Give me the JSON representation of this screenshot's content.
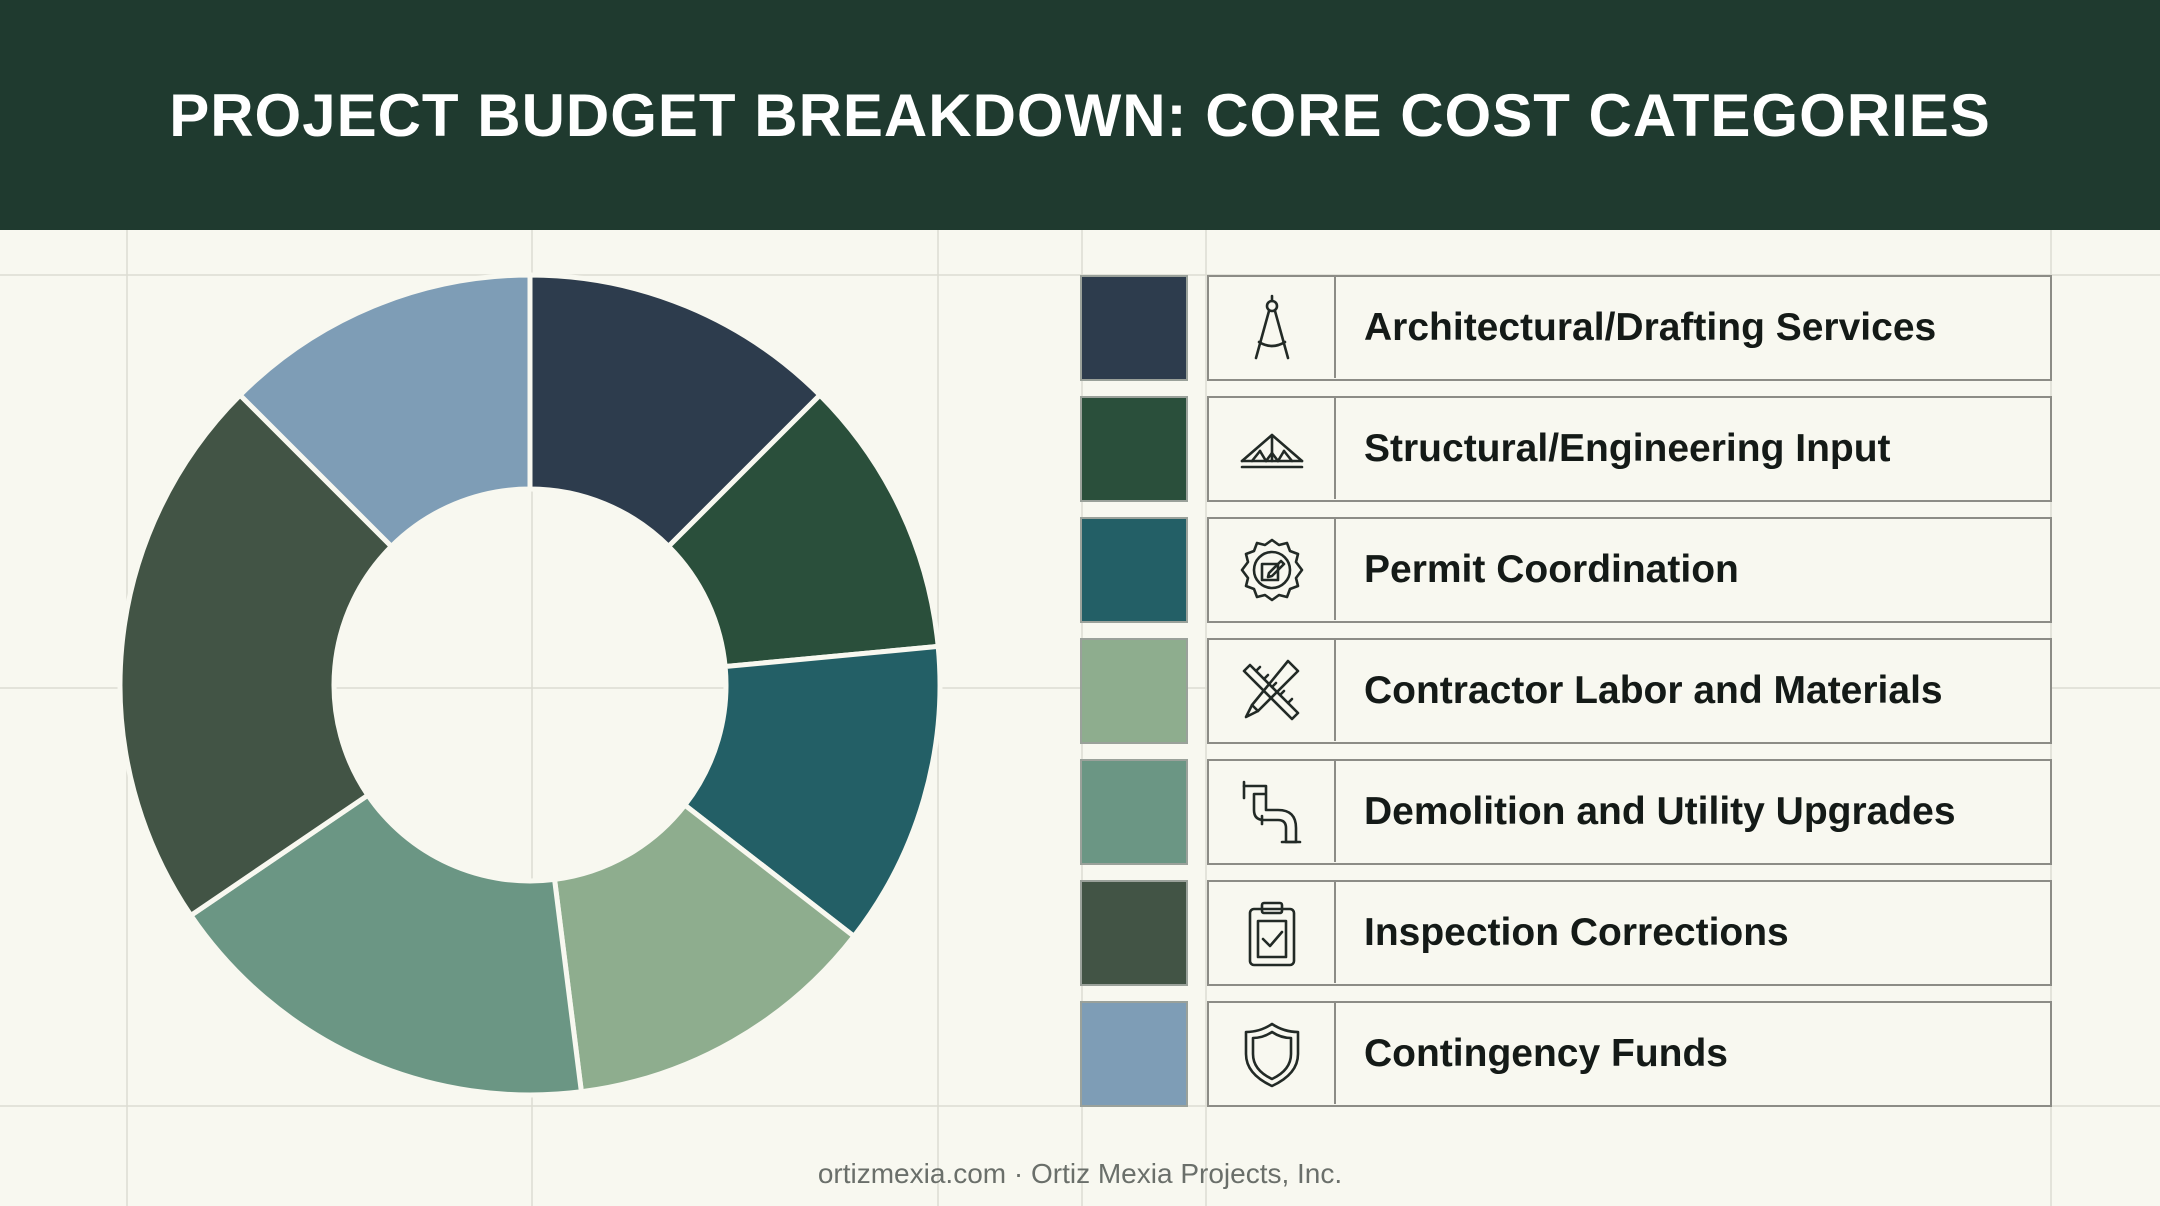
{
  "header": {
    "title": "PROJECT BUDGET BREAKDOWN: CORE COST CATEGORIES"
  },
  "footer": {
    "text": "ortizmexia.com · Ortiz Mexia Projects, Inc."
  },
  "chart_data": {
    "type": "pie",
    "title": "PROJECT BUDGET BREAKDOWN: CORE COST CATEGORIES",
    "donut": true,
    "legend_position": "right",
    "categories": [
      "Architectural/Drafting Services",
      "Structural/Engineering Input",
      "Permit Coordination",
      "Contractor Labor and Materials",
      "Demolition and Utility Upgrades",
      "Inspection Corrections",
      "Contingency Funds"
    ],
    "values": [
      12.5,
      11,
      12,
      12.5,
      17.5,
      22,
      12.5
    ],
    "colors": [
      "#2d3c4d",
      "#2a4f3b",
      "#235f66",
      "#8ead8e",
      "#6b9684",
      "#425445",
      "#7e9db6"
    ],
    "icons": [
      "compass-icon",
      "roof-truss-icon",
      "permit-seal-icon",
      "ruler-pencil-icon",
      "pipe-icon",
      "clipboard-check-icon",
      "shield-icon"
    ]
  }
}
